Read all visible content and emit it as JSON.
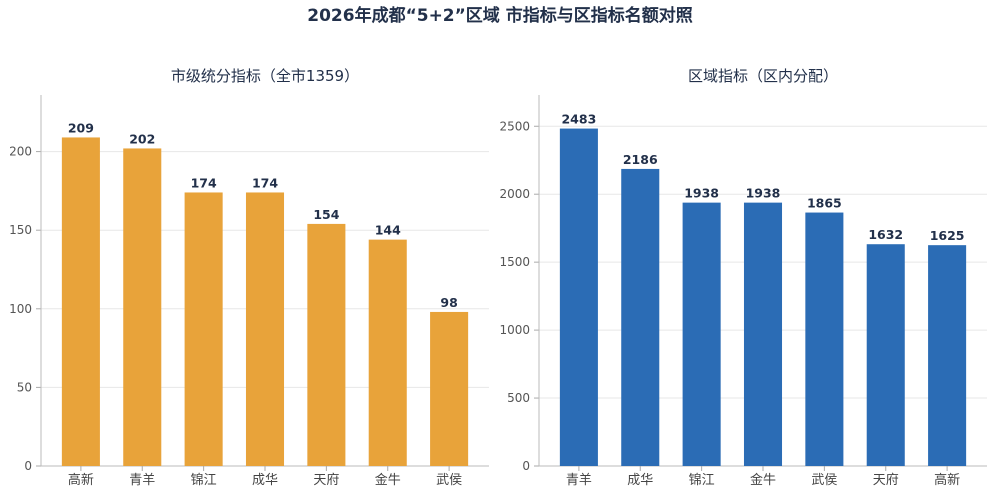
{
  "title": "2026年成都“5+2”区域 市指标与区指标名额对照",
  "chart_data": [
    {
      "type": "bar",
      "title": "市级统分指标（全市1359）",
      "categories": [
        "高新",
        "青羊",
        "锦江",
        "成华",
        "天府",
        "金牛",
        "武侯"
      ],
      "values": [
        209,
        202,
        174,
        174,
        154,
        144,
        98
      ],
      "yticks": [
        0,
        50,
        100,
        150,
        200
      ],
      "ylim": [
        0,
        236
      ],
      "color": "#E8A33A",
      "grid": true,
      "legend": "none"
    },
    {
      "type": "bar",
      "title": "区域指标（区内分配）",
      "categories": [
        "青羊",
        "成华",
        "锦江",
        "金牛",
        "武侯",
        "天府",
        "高新"
      ],
      "values": [
        2483,
        2186,
        1938,
        1938,
        1865,
        1632,
        1625
      ],
      "yticks": [
        0,
        500,
        1000,
        1500,
        2000,
        2500
      ],
      "ylim": [
        0,
        2730
      ],
      "color": "#2B6CB5",
      "grid": true,
      "legend": "none"
    }
  ]
}
